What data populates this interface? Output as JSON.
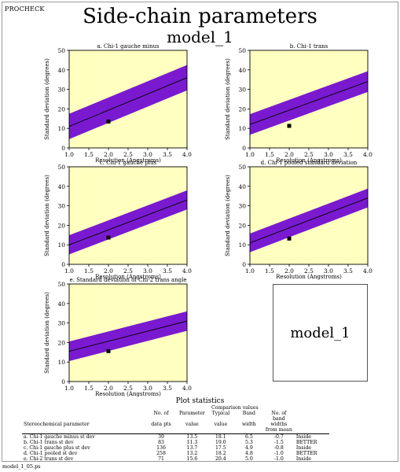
{
  "header": {
    "brand": "PROCHECK",
    "title": "Side-chain parameters",
    "model": "model_1"
  },
  "footer": {
    "filename": "model_1_05.ps"
  },
  "colors": {
    "panel_bg": "#ffffc0",
    "band": "#7a1ad0",
    "line": "#000000",
    "point": "#000000"
  },
  "model_box_label": "model_1",
  "chart_data": [
    {
      "type": "line",
      "title": "a. Chi-1 gauche minus",
      "xlabel": "Resolution (Angstroms)",
      "ylabel": "Standard deviation (degrees)",
      "xlim": [
        1.0,
        4.0
      ],
      "ylim": [
        0,
        50
      ],
      "xticks": [
        "1.0",
        "1.5",
        "2.0",
        "2.5",
        "3.0",
        "3.5",
        "4.0"
      ],
      "yticks": [
        "0",
        "10",
        "20",
        "30",
        "40",
        "50"
      ],
      "mean_line": {
        "x": [
          1.0,
          4.0
        ],
        "y": [
          11,
          36
        ]
      },
      "band_halfwidth": 6.5,
      "point": {
        "x": 2.0,
        "y": 13.5
      }
    },
    {
      "type": "line",
      "title": "b. Chi-1 trans",
      "xlabel": "Resolution (Angstroms)",
      "ylabel": "Standard deviation (degrees)",
      "xlim": [
        1.0,
        4.0
      ],
      "ylim": [
        0,
        50
      ],
      "xticks": [
        "1.0",
        "1.5",
        "2.0",
        "2.5",
        "3.0",
        "3.5",
        "4.0"
      ],
      "yticks": [
        "0",
        "10",
        "20",
        "30",
        "40",
        "50"
      ],
      "mean_line": {
        "x": [
          1.0,
          4.0
        ],
        "y": [
          12,
          34
        ]
      },
      "band_halfwidth": 5.3,
      "point": {
        "x": 2.0,
        "y": 11.3
      }
    },
    {
      "type": "line",
      "title": "c. Chi-1 gauche plus",
      "xlabel": "Resolution (Angstroms)",
      "ylabel": "Standard deviation (degrees)",
      "xlim": [
        1.0,
        4.0
      ],
      "ylim": [
        0,
        50
      ],
      "xticks": [
        "1.0",
        "1.5",
        "2.0",
        "2.5",
        "3.0",
        "3.5",
        "4.0"
      ],
      "yticks": [
        "0",
        "10",
        "20",
        "30",
        "40",
        "50"
      ],
      "mean_line": {
        "x": [
          1.0,
          4.0
        ],
        "y": [
          10,
          33
        ]
      },
      "band_halfwidth": 4.9,
      "point": {
        "x": 2.0,
        "y": 13.7
      }
    },
    {
      "type": "line",
      "title": "d. Chi-1 pooled standard deviation",
      "xlabel": "Resolution (Angstroms)",
      "ylabel": "Standard deviation (degrees)",
      "xlim": [
        1.0,
        4.0
      ],
      "ylim": [
        0,
        50
      ],
      "xticks": [
        "1.0",
        "1.5",
        "2.0",
        "2.5",
        "3.0",
        "3.5",
        "4.0"
      ],
      "yticks": [
        "0",
        "10",
        "20",
        "30",
        "40",
        "50"
      ],
      "mean_line": {
        "x": [
          1.0,
          4.0
        ],
        "y": [
          11,
          34
        ]
      },
      "band_halfwidth": 4.8,
      "point": {
        "x": 2.0,
        "y": 13.2
      }
    },
    {
      "type": "line",
      "title": "e. Standard deviation of Chi-2 trans angle",
      "xlabel": "Resolution (Angstroms)",
      "ylabel": "Standard deviation (degrees)",
      "xlim": [
        1.0,
        4.0
      ],
      "ylim": [
        0,
        50
      ],
      "xticks": [
        "1.0",
        "1.5",
        "2.0",
        "2.5",
        "3.0",
        "3.5",
        "4.0"
      ],
      "yticks": [
        "0",
        "10",
        "20",
        "30",
        "40",
        "50"
      ],
      "mean_line": {
        "x": [
          1.0,
          4.0
        ],
        "y": [
          15.5,
          31
        ]
      },
      "band_halfwidth": 5.0,
      "point": {
        "x": 2.0,
        "y": 15.6
      }
    }
  ],
  "stats": {
    "title": "Plot statistics",
    "group_header": "Comparison values",
    "columns": {
      "param": "Stereochemical parameter",
      "n_a": "No. of",
      "n_b": "data pts",
      "v_a": "Parameter",
      "v_b": "value",
      "t_a": "Typical",
      "t_b": "value",
      "b_a": "Band",
      "b_b": "width",
      "w_a": "No. of",
      "w_b": "band widths",
      "w_c": "from mean"
    },
    "rows": [
      {
        "param": "a. Chi-1 gauche minus st dev",
        "n": "39",
        "value": "13.5",
        "typical": "18.1",
        "band": "6.5",
        "widths": "-0.7",
        "status": "Inside"
      },
      {
        "param": "b. Chi-1 trans st dev",
        "n": "83",
        "value": "11.3",
        "typical": "19.0",
        "band": "5.3",
        "widths": "-1.5",
        "status": "BETTER"
      },
      {
        "param": "c. Chi-1 gauche plus st dev",
        "n": "136",
        "value": "13.7",
        "typical": "17.5",
        "band": "4.9",
        "widths": "-0.8",
        "status": "Inside"
      },
      {
        "param": "d. Chi-1 pooled st dev",
        "n": "258",
        "value": "13.2",
        "typical": "18.2",
        "band": "4.8",
        "widths": "-1.0",
        "status": "BETTER"
      },
      {
        "param": "e. Chi-2 trans st dev",
        "n": "71",
        "value": "15.6",
        "typical": "20.4",
        "band": "5.0",
        "widths": "-1.0",
        "status": "Inside"
      }
    ]
  }
}
